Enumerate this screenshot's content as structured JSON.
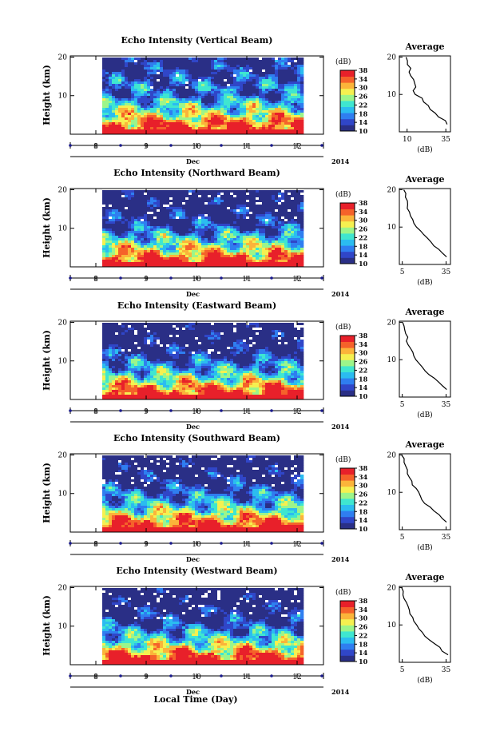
{
  "chart_data": [
    {
      "type": "heatmap",
      "title": "Echo Intensity (Vertical Beam)",
      "ylabel": "Height (km)",
      "y_ticks": [
        "20",
        "10"
      ],
      "ylim": [
        0,
        20
      ],
      "x_ticks": [
        "8",
        "9",
        "10",
        "11",
        "12"
      ],
      "x_month": "Dec",
      "x_year": "2014",
      "colorbar_label": "(dB)",
      "colorbar_ticks": [
        "38",
        "34",
        "30",
        "26",
        "22",
        "18",
        "14",
        "10"
      ],
      "colorbar_range": [
        10,
        38
      ],
      "profile": {
        "title": "Average",
        "xlabel": "(dB)",
        "x_ticks": [
          "10",
          "35"
        ],
        "y_ticks": [
          "20",
          "10"
        ],
        "xlim": [
          5,
          38
        ],
        "heights": [
          2,
          3,
          4,
          5,
          6,
          7,
          8,
          9,
          10,
          11,
          12,
          13,
          14,
          15,
          16,
          17,
          18,
          19,
          20
        ],
        "values": [
          36,
          34,
          31,
          28,
          25,
          23,
          21,
          19,
          16,
          14,
          16,
          15,
          14,
          13,
          12,
          12,
          11,
          10,
          9
        ]
      }
    },
    {
      "type": "heatmap",
      "title": "Echo Intensity (Northward Beam)",
      "ylabel": "Height (km)",
      "y_ticks": [
        "20",
        "10"
      ],
      "ylim": [
        0,
        20
      ],
      "x_ticks": [
        "8",
        "9",
        "10",
        "11",
        "12"
      ],
      "x_month": "Dec",
      "x_year": "2014",
      "colorbar_label": "(dB)",
      "colorbar_ticks": [
        "38",
        "34",
        "30",
        "26",
        "22",
        "18",
        "14",
        "10"
      ],
      "colorbar_range": [
        10,
        38
      ],
      "profile": {
        "title": "Average",
        "xlabel": "(dB)",
        "x_ticks": [
          "5",
          "35"
        ],
        "y_ticks": [
          "20",
          "10"
        ],
        "xlim": [
          3,
          38
        ],
        "heights": [
          2,
          3,
          4,
          5,
          6,
          7,
          8,
          9,
          10,
          11,
          12,
          13,
          14,
          15,
          16,
          17,
          18,
          19,
          20
        ],
        "values": [
          36,
          33,
          30,
          27,
          24,
          22,
          20,
          17,
          15,
          13,
          12,
          11,
          10,
          9,
          8,
          8,
          7,
          7,
          6
        ]
      }
    },
    {
      "type": "heatmap",
      "title": "Echo Intensity (Eastward Beam)",
      "ylabel": "Height (km)",
      "y_ticks": [
        "20",
        "10"
      ],
      "ylim": [
        0,
        20
      ],
      "x_ticks": [
        "8",
        "9",
        "10",
        "11",
        "12"
      ],
      "x_month": "Dec",
      "x_year": "2014",
      "colorbar_label": "(dB)",
      "colorbar_ticks": [
        "38",
        "34",
        "30",
        "26",
        "22",
        "18",
        "14",
        "10"
      ],
      "colorbar_range": [
        10,
        38
      ],
      "profile": {
        "title": "Average",
        "xlabel": "(dB)",
        "x_ticks": [
          "5",
          "35"
        ],
        "y_ticks": [
          "20",
          "10"
        ],
        "xlim": [
          3,
          38
        ],
        "heights": [
          2,
          3,
          4,
          5,
          6,
          7,
          8,
          9,
          10,
          11,
          12,
          13,
          14,
          15,
          16,
          17,
          18,
          19,
          20
        ],
        "values": [
          36,
          33,
          30,
          27,
          24,
          21,
          19,
          17,
          15,
          13,
          12,
          10,
          9,
          8,
          8,
          7,
          6,
          6,
          5
        ]
      }
    },
    {
      "type": "heatmap",
      "title": "Echo Intensity (Southward Beam)",
      "ylabel": "Height (km)",
      "y_ticks": [
        "20",
        "10"
      ],
      "ylim": [
        0,
        20
      ],
      "x_ticks": [
        "8",
        "9",
        "10",
        "11",
        "12"
      ],
      "x_month": "Dec",
      "x_year": "2014",
      "colorbar_label": "(dB)",
      "colorbar_ticks": [
        "38",
        "34",
        "30",
        "26",
        "22",
        "18",
        "14",
        "10"
      ],
      "colorbar_range": [
        10,
        38
      ],
      "profile": {
        "title": "Average",
        "xlabel": "(dB)",
        "x_ticks": [
          "5",
          "35"
        ],
        "y_ticks": [
          "20",
          "10"
        ],
        "xlim": [
          3,
          38
        ],
        "heights": [
          2,
          3,
          4,
          5,
          6,
          7,
          8,
          9,
          10,
          11,
          12,
          13,
          14,
          15,
          16,
          17,
          18,
          19,
          20
        ],
        "values": [
          36,
          33,
          30,
          27,
          24,
          21,
          19,
          17,
          16,
          14,
          12,
          11,
          10,
          9,
          8,
          7,
          6,
          6,
          5
        ]
      }
    },
    {
      "type": "heatmap",
      "title": "Echo Intensity (Westward Beam)",
      "ylabel": "Height (km)",
      "y_ticks": [
        "20",
        "10"
      ],
      "ylim": [
        0,
        20
      ],
      "x_ticks": [
        "8",
        "9",
        "10",
        "11",
        "12"
      ],
      "x_month": "Dec",
      "x_year": "2014",
      "colorbar_label": "(dB)",
      "colorbar_ticks": [
        "38",
        "34",
        "30",
        "26",
        "22",
        "18",
        "14",
        "10"
      ],
      "colorbar_range": [
        10,
        38
      ],
      "profile": {
        "title": "Average",
        "xlabel": "(dB)",
        "x_ticks": [
          "5",
          "35"
        ],
        "y_ticks": [
          "20",
          "10"
        ],
        "xlim": [
          3,
          38
        ],
        "heights": [
          2,
          3,
          4,
          5,
          6,
          7,
          8,
          9,
          10,
          11,
          12,
          13,
          14,
          15,
          16,
          17,
          18,
          19,
          20
        ],
        "values": [
          36,
          33,
          30,
          27,
          24,
          21,
          19,
          17,
          15,
          13,
          12,
          11,
          10,
          9,
          8,
          7,
          6,
          6,
          5
        ]
      }
    }
  ],
  "footer": {
    "xlabel": "Local Time (Day)"
  },
  "colors": {
    "colormap": [
      "#2a2f86",
      "#3046c8",
      "#2f7ef0",
      "#2bbcf0",
      "#3fe6d0",
      "#9cf58a",
      "#f5f050",
      "#fbb43a",
      "#f5622a",
      "#e8202a"
    ],
    "missing": "#ffffff",
    "tick_marker": "#1a1a8c"
  }
}
